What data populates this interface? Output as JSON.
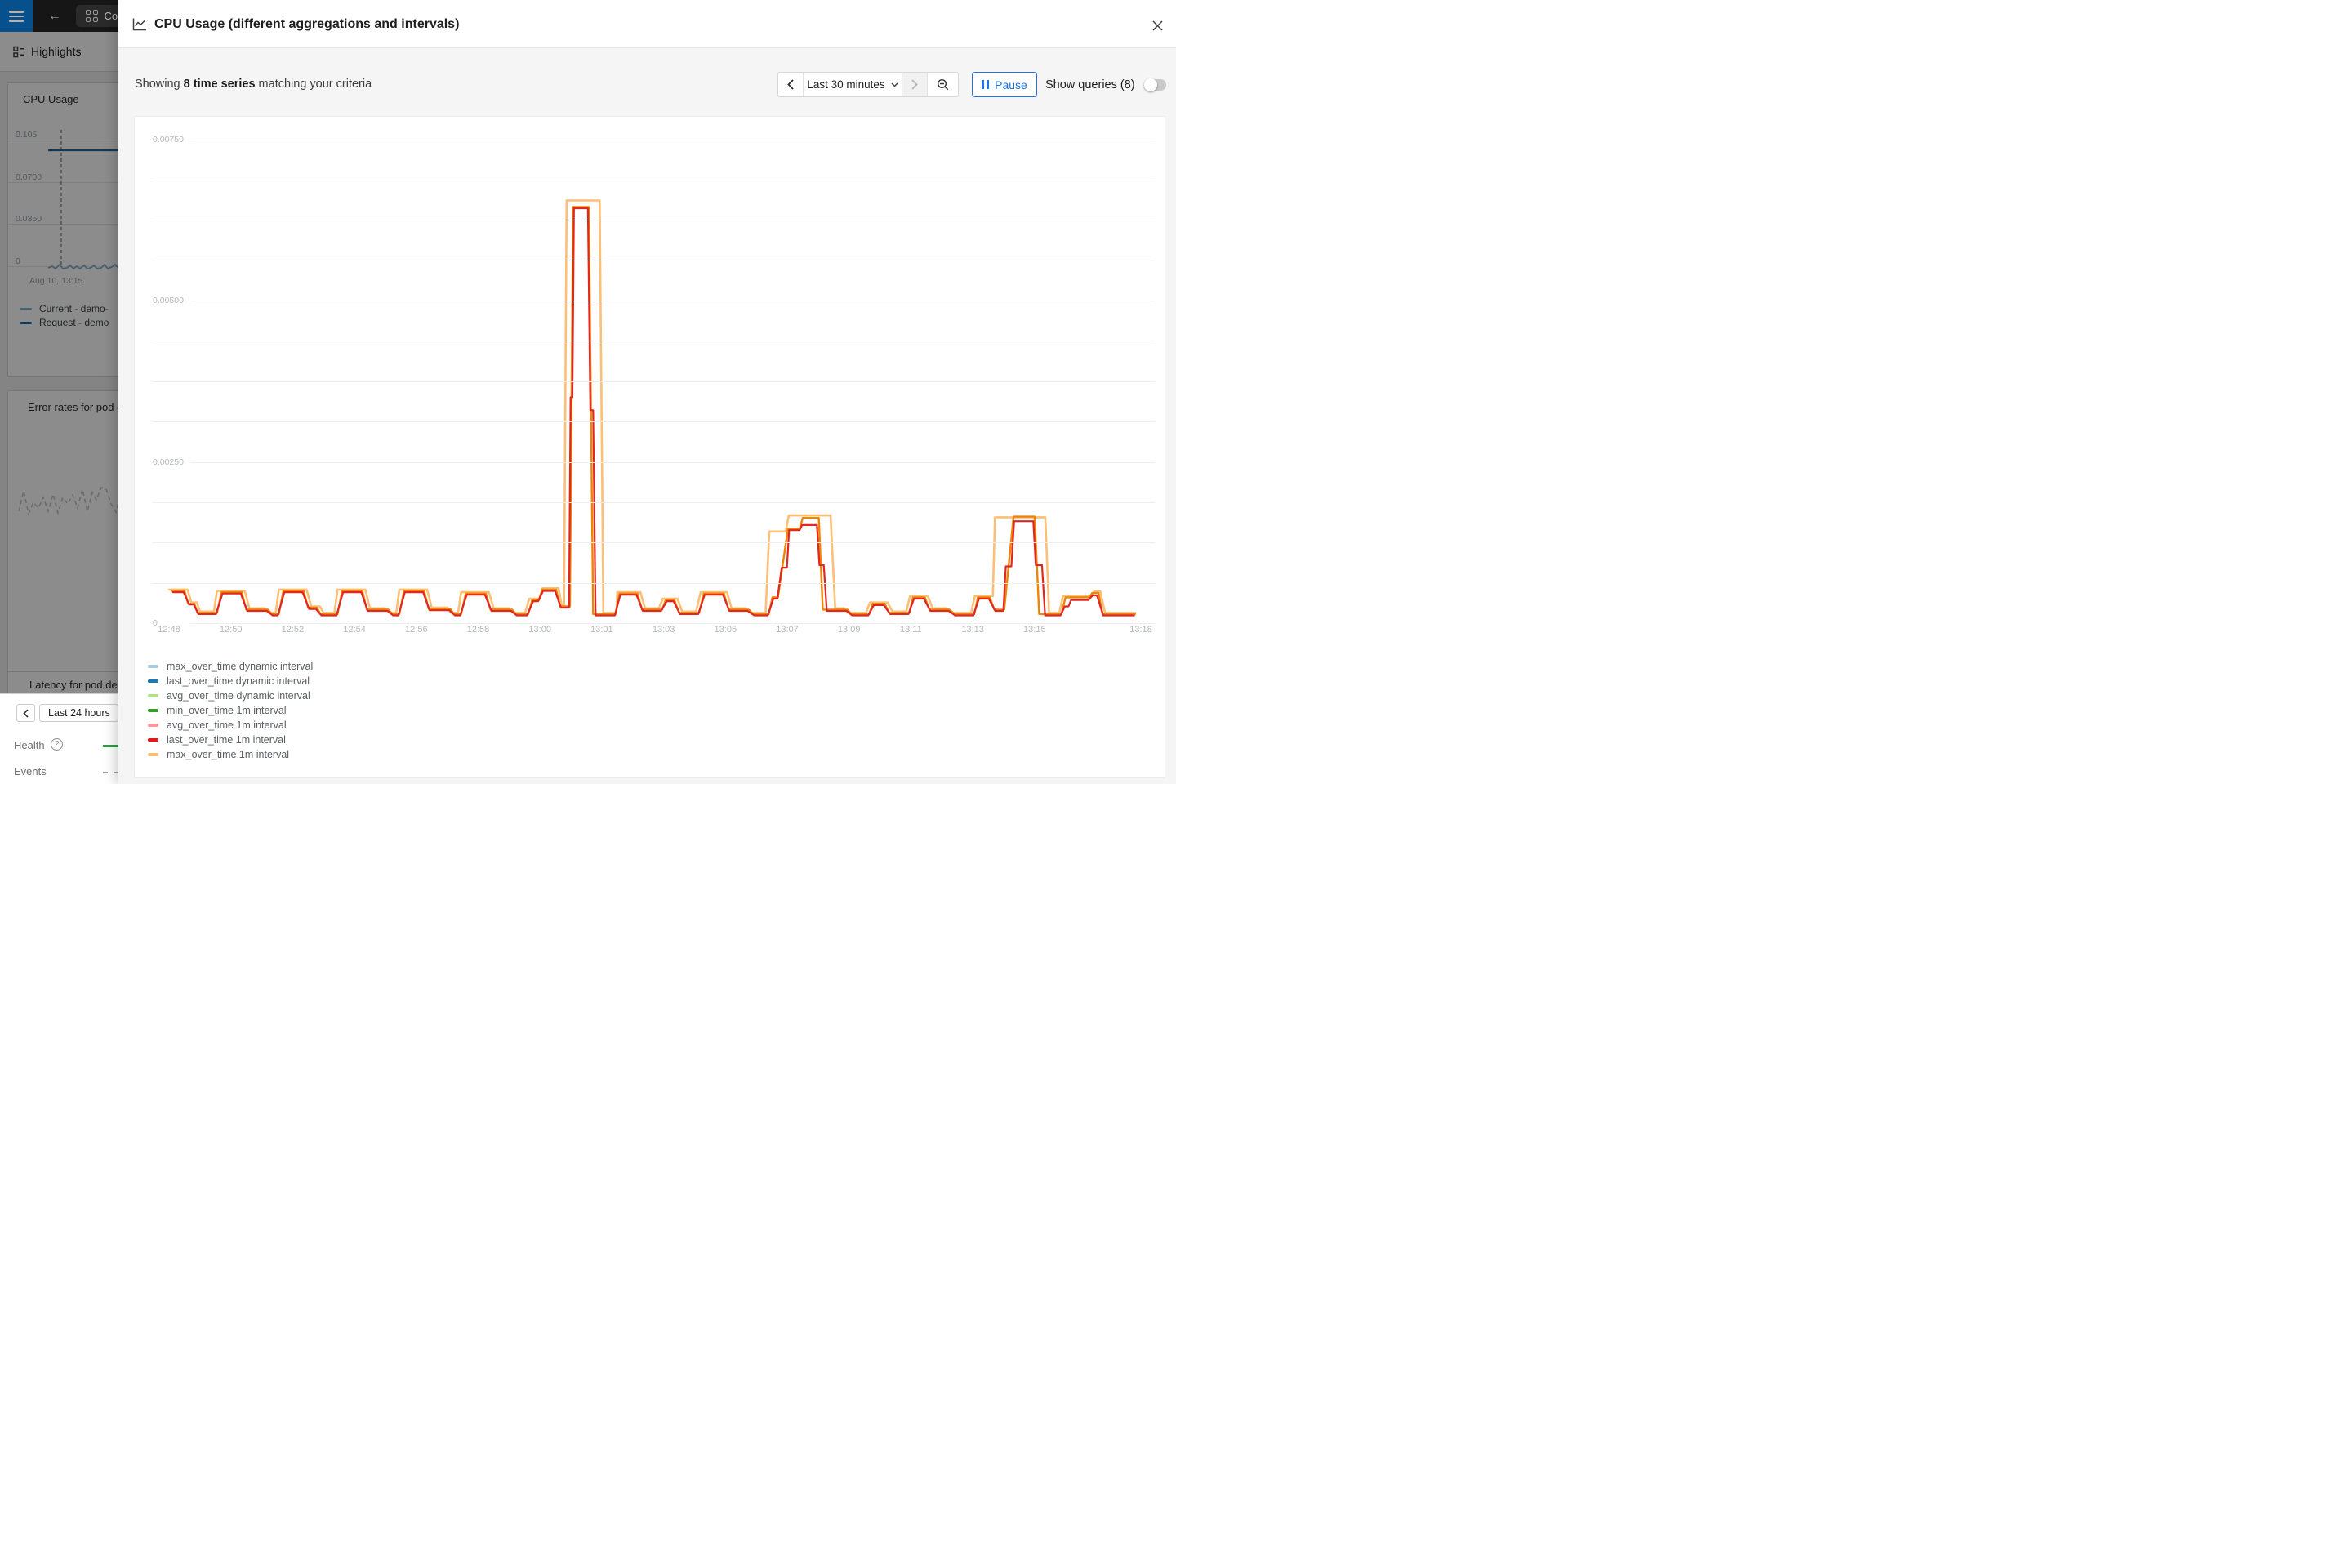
{
  "topbar": {
    "tab_label": "Co"
  },
  "nav": {
    "highlights": "Highlights"
  },
  "background": {
    "cpu_card": {
      "title": "CPU Usage",
      "y_labels": [
        "0.105",
        "0.0700",
        "0.0350",
        "0"
      ],
      "x_label": "Aug 10, 13:15",
      "legend": [
        {
          "label": "Current - demo-",
          "color": "#83afca"
        },
        {
          "label": "Request - demo",
          "color": "#20689f"
        }
      ]
    },
    "error_card": {
      "title": "Error rates for pod d"
    },
    "latency_card": {
      "title": "Latency for pod de"
    },
    "bottom_bar": {
      "timeframe": "Last 24 hours",
      "health_label": "Health",
      "help_glyph": "?",
      "events_label": "Events",
      "health_color": "#2f9e44"
    }
  },
  "modal": {
    "title": "CPU Usage (different aggregations and intervals)",
    "summary_prefix": "Showing ",
    "summary_bold": "8 time series",
    "summary_suffix": " matching your criteria",
    "controls": {
      "timeframe": "Last 30 minutes",
      "pause_label": "Pause",
      "show_queries_label": "Show queries (8)"
    }
  },
  "chart_data": {
    "type": "line",
    "title": "CPU Usage (different aggregations and intervals)",
    "x_tick_labels": [
      "12:48",
      "12:50",
      "12:52",
      "12:54",
      "12:56",
      "12:58",
      "13:00",
      "13:01",
      "13:03",
      "13:05",
      "13:07",
      "13:09",
      "13:11",
      "13:13",
      "13:15",
      "13:18"
    ],
    "y_tick_labels": [
      "0",
      "0.00250",
      "0.00500",
      "0.00750"
    ],
    "ylim": [
      0,
      0.0078
    ],
    "grid": "horizontal, 13 lines (every 0.000625)",
    "legend_position": "bottom-left",
    "time_window": "12:48 to 13:18, t = minutes after 12:48",
    "legend": [
      {
        "name": "max_over_time dynamic interval",
        "color": "#a6cee3"
      },
      {
        "name": "last_over_time dynamic interval",
        "color": "#1f78b4"
      },
      {
        "name": "avg_over_time dynamic interval",
        "color": "#b2df8a"
      },
      {
        "name": "min_over_time 1m interval",
        "color": "#33a02c"
      },
      {
        "name": "avg_over_time 1m interval",
        "color": "#fb9a99"
      },
      {
        "name": "last_over_time 1m interval",
        "color": "#e31a1c"
      },
      {
        "name": "max_over_time 1m interval",
        "color": "#fdbf6f"
      }
    ],
    "notes": "8 series total; most overlap near the baseline and are hidden behind the red/orange traces. Spikes ~0.0065 at 13:00-13:01, ~0.0016 at 13:07 and 13:13. Traces below as plateaus [t_start, t_end, value].",
    "traces": [
      {
        "name": "max_over_time 1m interval",
        "color": "#fbbf75",
        "width": 2.6,
        "plateaus": [
          [
            0.0,
            0.6,
            0.00052
          ],
          [
            0.72,
            0.9,
            0.00032
          ],
          [
            1.0,
            1.45,
            0.00018
          ],
          [
            1.55,
            2.45,
            0.0005
          ],
          [
            2.6,
            3.1,
            0.00023
          ],
          [
            3.22,
            3.45,
            0.00016
          ],
          [
            3.55,
            4.45,
            0.00052
          ],
          [
            4.6,
            4.88,
            0.00026
          ],
          [
            5.0,
            5.35,
            0.00016
          ],
          [
            5.45,
            6.35,
            0.00052
          ],
          [
            6.5,
            7.0,
            0.00023
          ],
          [
            7.12,
            7.35,
            0.00016
          ],
          [
            7.45,
            8.35,
            0.00052
          ],
          [
            8.5,
            9.0,
            0.00024
          ],
          [
            9.12,
            9.35,
            0.00016
          ],
          [
            9.45,
            10.35,
            0.00048
          ],
          [
            10.5,
            11.0,
            0.00023
          ],
          [
            11.12,
            11.52,
            0.00016
          ],
          [
            11.65,
            12.0,
            0.00038
          ],
          [
            12.08,
            12.6,
            0.00054
          ],
          [
            12.7,
            12.78,
            0.00028
          ],
          [
            12.86,
            13.93,
            0.00655
          ],
          [
            14.05,
            14.47,
            0.00016
          ],
          [
            14.5,
            15.25,
            0.00048
          ],
          [
            15.4,
            15.85,
            0.00023
          ],
          [
            15.97,
            16.45,
            0.00038
          ],
          [
            16.6,
            17.05,
            0.00018
          ],
          [
            17.2,
            18.05,
            0.00048
          ],
          [
            18.2,
            18.65,
            0.00023
          ],
          [
            18.8,
            19.3,
            0.00016
          ],
          [
            19.42,
            19.95,
            0.00142
          ],
          [
            20.05,
            21.4,
            0.00167
          ],
          [
            21.55,
            21.85,
            0.00023
          ],
          [
            21.97,
            22.55,
            0.00016
          ],
          [
            22.67,
            23.25,
            0.00032
          ],
          [
            23.4,
            23.85,
            0.00018
          ],
          [
            23.97,
            24.55,
            0.00042
          ],
          [
            24.7,
            25.15,
            0.00023
          ],
          [
            25.3,
            25.95,
            0.00016
          ],
          [
            26.07,
            26.65,
            0.00042
          ],
          [
            26.72,
            28.35,
            0.00164
          ],
          [
            28.47,
            28.8,
            0.00016
          ],
          [
            28.92,
            29.83,
            0.00042
          ],
          [
            29.93,
            30.13,
            0.00049
          ],
          [
            30.28,
            31.25,
            0.00016
          ]
        ]
      },
      {
        "name": "unlabeled 8th series (legend clipped)",
        "color": "#f08300",
        "width": 2.4,
        "plateaus": [
          [
            0.1,
            0.5,
            0.0005
          ],
          [
            0.62,
            0.82,
            0.0003
          ],
          [
            0.92,
            1.55,
            0.00016
          ],
          [
            1.7,
            2.35,
            0.00048
          ],
          [
            2.5,
            3.2,
            0.00021
          ],
          [
            3.32,
            3.55,
            0.00014
          ],
          [
            3.7,
            4.35,
            0.0005
          ],
          [
            4.5,
            4.78,
            0.00024
          ],
          [
            4.9,
            5.45,
            0.00014
          ],
          [
            5.6,
            6.25,
            0.0005
          ],
          [
            6.4,
            7.1,
            0.00021
          ],
          [
            7.22,
            7.45,
            0.00014
          ],
          [
            7.6,
            8.25,
            0.0005
          ],
          [
            8.4,
            9.1,
            0.00022
          ],
          [
            9.22,
            9.45,
            0.00014
          ],
          [
            9.6,
            10.25,
            0.00046
          ],
          [
            10.4,
            11.1,
            0.00021
          ],
          [
            11.22,
            11.62,
            0.00014
          ],
          [
            11.75,
            11.97,
            0.00036
          ],
          [
            12.07,
            12.52,
            0.00052
          ],
          [
            12.65,
            12.97,
            0.00026
          ],
          [
            13.07,
            13.58,
            0.00645
          ],
          [
            13.72,
            14.45,
            0.00014
          ],
          [
            14.57,
            15.15,
            0.00046
          ],
          [
            15.3,
            15.95,
            0.00021
          ],
          [
            16.07,
            16.35,
            0.00036
          ],
          [
            16.5,
            17.15,
            0.00016
          ],
          [
            17.3,
            17.95,
            0.00046
          ],
          [
            18.1,
            18.75,
            0.00021
          ],
          [
            18.9,
            19.4,
            0.00014
          ],
          [
            19.52,
            19.7,
            0.0004
          ],
          [
            20.02,
            20.4,
            0.00146
          ],
          [
            20.5,
            21.02,
            0.00163
          ],
          [
            21.15,
            21.95,
            0.00021
          ],
          [
            22.07,
            22.65,
            0.00014
          ],
          [
            22.77,
            23.15,
            0.0003
          ],
          [
            23.3,
            23.95,
            0.00016
          ],
          [
            24.07,
            24.45,
            0.0004
          ],
          [
            24.6,
            25.25,
            0.00021
          ],
          [
            25.4,
            26.05,
            0.00014
          ],
          [
            26.17,
            26.55,
            0.0004
          ],
          [
            26.7,
            27.02,
            0.00021
          ],
          [
            27.32,
            28.0,
            0.00165
          ],
          [
            28.15,
            28.87,
            0.00014
          ],
          [
            29.0,
            29.77,
            0.0004
          ],
          [
            29.87,
            30.07,
            0.00047
          ],
          [
            30.2,
            31.25,
            0.00014
          ]
        ]
      },
      {
        "name": "last_over_time 1m interval",
        "color": "#e02723",
        "width": 2.2,
        "plateaus": [
          [
            0.13,
            0.47,
            0.00048
          ],
          [
            0.65,
            0.8,
            0.00029
          ],
          [
            0.95,
            1.52,
            0.00014
          ],
          [
            1.73,
            2.32,
            0.00046
          ],
          [
            2.53,
            3.17,
            0.00019
          ],
          [
            3.35,
            3.52,
            0.00012
          ],
          [
            3.73,
            4.32,
            0.00048
          ],
          [
            4.53,
            4.75,
            0.00022
          ],
          [
            4.93,
            5.42,
            0.00012
          ],
          [
            5.63,
            6.22,
            0.00048
          ],
          [
            6.43,
            7.07,
            0.00019
          ],
          [
            7.25,
            7.42,
            0.00012
          ],
          [
            7.63,
            8.22,
            0.00048
          ],
          [
            8.43,
            9.07,
            0.0002
          ],
          [
            9.25,
            9.42,
            0.00012
          ],
          [
            9.63,
            10.22,
            0.00044
          ],
          [
            10.43,
            11.07,
            0.00019
          ],
          [
            11.25,
            11.58,
            0.00012
          ],
          [
            11.78,
            11.94,
            0.00034
          ],
          [
            12.1,
            12.49,
            0.0005
          ],
          [
            12.68,
            12.94,
            0.00024
          ],
          [
            12.99,
            13.05,
            0.0035
          ],
          [
            13.1,
            13.55,
            0.00643
          ],
          [
            13.63,
            13.72,
            0.0033
          ],
          [
            13.8,
            14.42,
            0.00012
          ],
          [
            14.6,
            15.12,
            0.00044
          ],
          [
            15.33,
            15.92,
            0.00019
          ],
          [
            16.1,
            16.32,
            0.00034
          ],
          [
            16.53,
            17.12,
            0.00014
          ],
          [
            17.33,
            17.92,
            0.00044
          ],
          [
            18.13,
            18.72,
            0.00019
          ],
          [
            18.93,
            19.37,
            0.00012
          ],
          [
            19.55,
            19.68,
            0.00038
          ],
          [
            19.82,
            19.99,
            0.00086
          ],
          [
            20.06,
            20.4,
            0.00144
          ],
          [
            20.48,
            20.96,
            0.00152
          ],
          [
            21.04,
            21.18,
            0.0009
          ],
          [
            21.28,
            21.92,
            0.00019
          ],
          [
            22.1,
            22.62,
            0.00012
          ],
          [
            22.8,
            23.12,
            0.00028
          ],
          [
            23.33,
            23.92,
            0.00014
          ],
          [
            24.1,
            24.42,
            0.00038
          ],
          [
            24.63,
            25.22,
            0.00019
          ],
          [
            25.43,
            26.02,
            0.00012
          ],
          [
            26.2,
            26.52,
            0.00038
          ],
          [
            26.73,
            26.99,
            0.00019
          ],
          [
            27.07,
            27.25,
            0.00088
          ],
          [
            27.34,
            27.96,
            0.00158
          ],
          [
            28.04,
            28.24,
            0.0009
          ],
          [
            28.34,
            28.84,
            0.00012
          ],
          [
            28.98,
            29.1,
            0.00026
          ],
          [
            29.18,
            29.74,
            0.00036
          ],
          [
            29.88,
            30.02,
            0.00043
          ],
          [
            30.22,
            31.22,
            0.00012
          ]
        ]
      }
    ]
  },
  "bg_chart_data": {
    "type": "line",
    "title": "CPU Usage (thumbnail, dimmed background panel)",
    "y_tick_labels": [
      "0",
      "0.0350",
      "0.0700",
      "0.105"
    ],
    "x_label": "Aug 10, 13:15",
    "series": [
      {
        "name": "Request - demo",
        "color": "#20689f",
        "shape": "flat line at ~0.092"
      },
      {
        "name": "Current - demo-",
        "color": "#83afca",
        "shape": "small ripples near ~0.004"
      }
    ]
  }
}
